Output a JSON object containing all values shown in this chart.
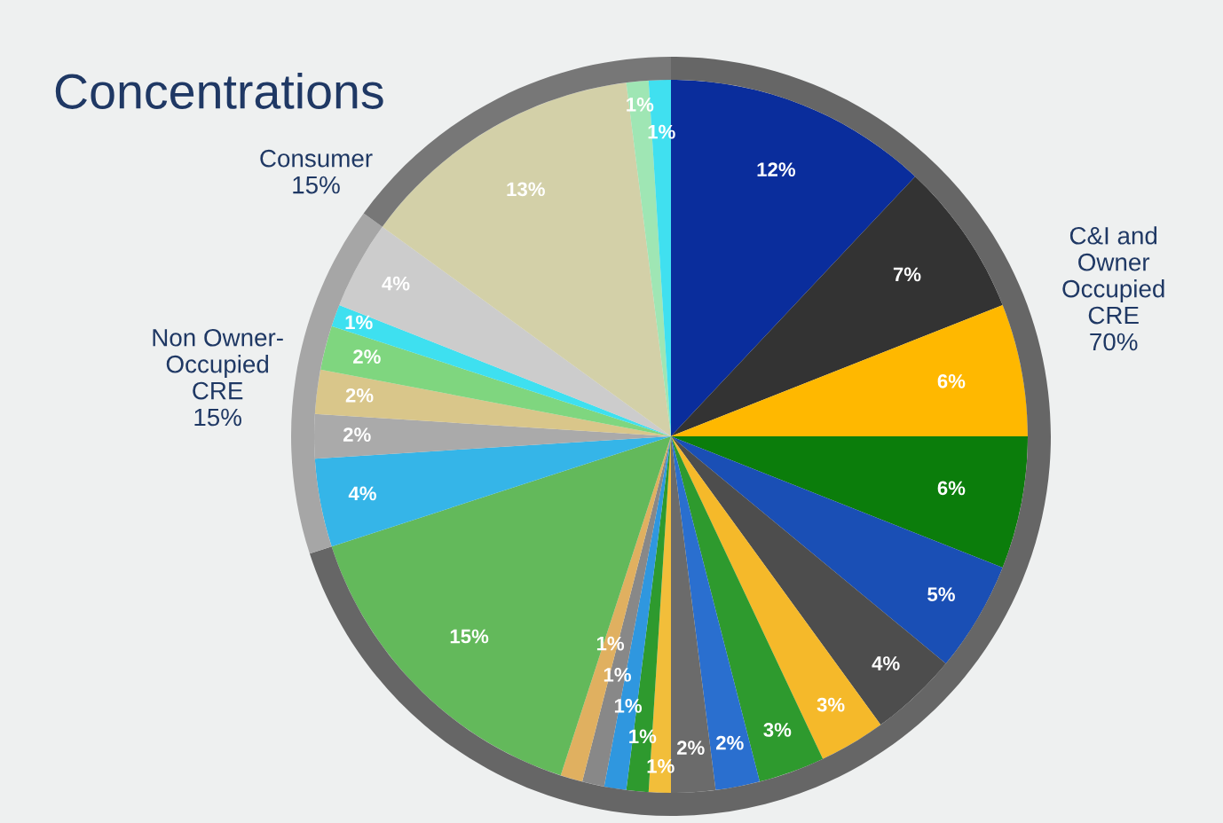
{
  "chart_data": {
    "type": "pie",
    "title": "Concentrations",
    "annotations": [
      "C&I and\nOwner\nOccupied\nCRE",
      "Non Owner-\nOccupied\nCRE",
      "Consumer"
    ],
    "series": [
      {
        "values": [
          12,
          7,
          6,
          6,
          5,
          4,
          3,
          3,
          2,
          2,
          1,
          1,
          1,
          1,
          1,
          15,
          4,
          2,
          2,
          2,
          1,
          4,
          13,
          1,
          1
        ],
        "value_labels": [
          "12%",
          "7%",
          "6%",
          "6%",
          "5%",
          "4%",
          "3%",
          "3%",
          "2%",
          "2%",
          "1%",
          "1%",
          "1%",
          "1%",
          "1%",
          "15%",
          "4%",
          "2%",
          "2%",
          "2%",
          "1%",
          "4%",
          "13%",
          "1%",
          "1%"
        ],
        "colors": [
          "#0a2d9c",
          "#333333",
          "#ffb800",
          "#0b7d0b",
          "#1a4fb5",
          "#4d4d4d",
          "#f5b92a",
          "#2e9a2e",
          "#2a6fcf",
          "#6b6b6b",
          "#f2be3a",
          "#2e9a2e",
          "#2f97df",
          "#888888",
          "#e0b060",
          "#63b95b",
          "#35b5e8",
          "#aaaaaa",
          "#d9c68a",
          "#7fd67f",
          "#3ee0f0",
          "#cccccc",
          "#d3d0a8",
          "#9fe6b4",
          "#40e0f0"
        ]
      },
      {
        "type": "donut",
        "values": [
          70,
          15,
          15
        ],
        "value_labels": [
          "70%",
          "15%",
          "15%"
        ],
        "colors": [
          "#666666",
          "#a6a6a6",
          "#777777"
        ]
      }
    ],
    "legend": false
  }
}
